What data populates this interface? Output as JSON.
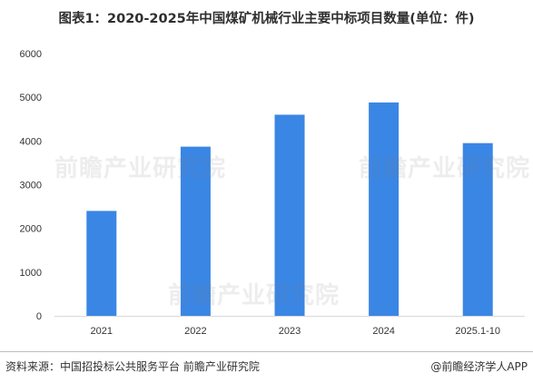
{
  "chart_data": {
    "type": "bar",
    "title": "图表1：2020-2025年中国煤矿机械行业主要中标项目数量(单位：件)",
    "categories": [
      "2021",
      "2022",
      "2023",
      "2024",
      "2025.1-10"
    ],
    "values": [
      2400,
      3870,
      4600,
      4880,
      3950
    ],
    "ylim": [
      0,
      6000
    ],
    "yticks": [
      0,
      1000,
      2000,
      3000,
      4000,
      5000,
      6000
    ],
    "xlabel": "",
    "ylabel": "",
    "grid": false,
    "legend": "none",
    "bar_color": "#3A86E5"
  },
  "footer": {
    "source": "资料来源：中国招投标公共服务平台 前瞻产业研究院",
    "brand": "@前瞻经济学人APP"
  },
  "watermark": {
    "text": "前瞻产业研究院"
  }
}
